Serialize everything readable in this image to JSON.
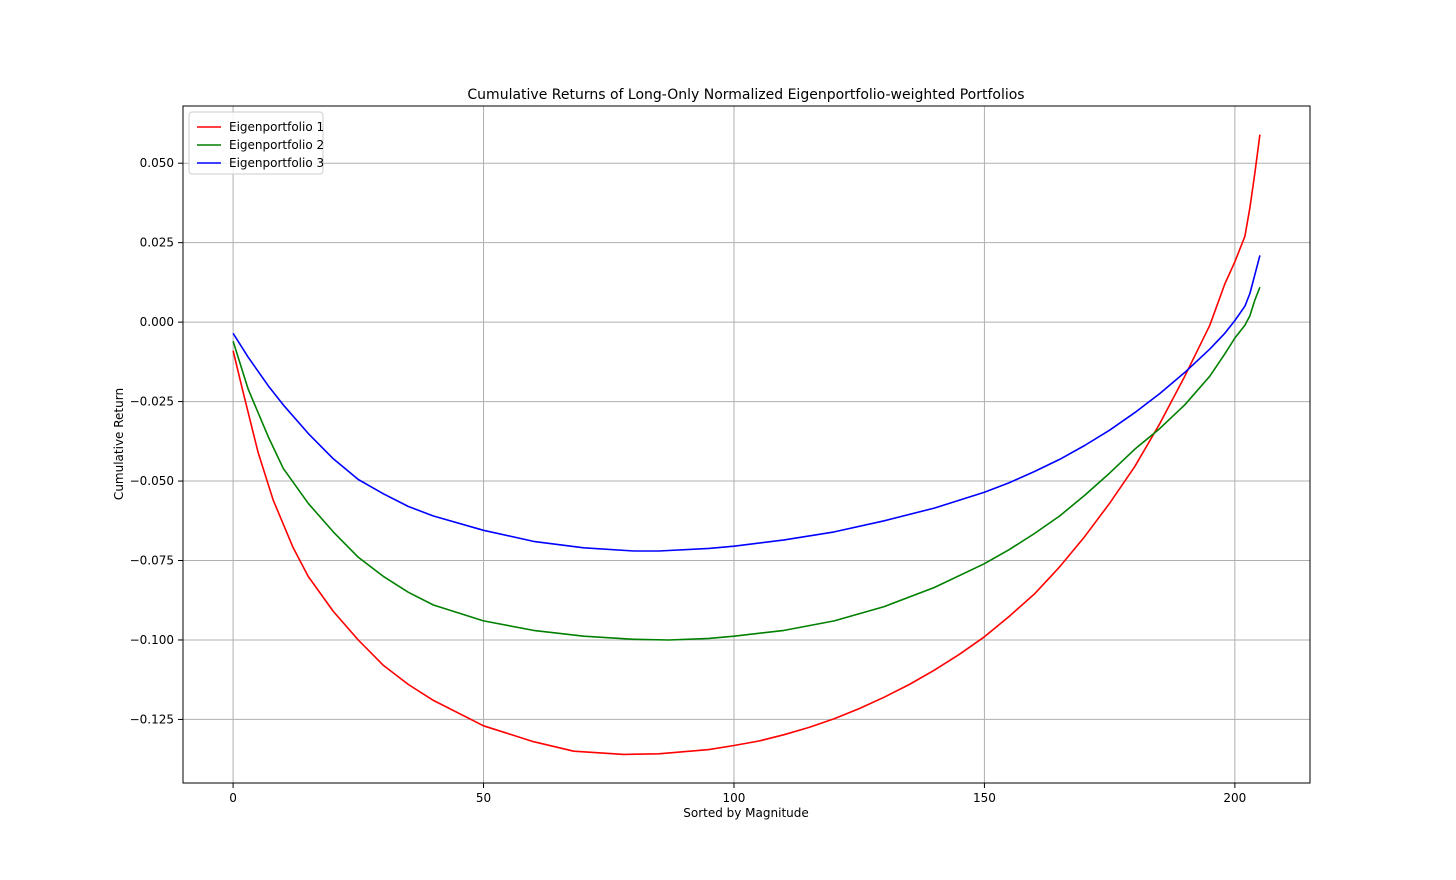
{
  "chart_data": {
    "type": "line",
    "title": "Cumulative Returns of Long-Only Normalized Eigenportfolio-weighted Portfolios",
    "xlabel": "Sorted by Magnitude",
    "ylabel": "Cumulative Return",
    "xlim": [
      -10,
      215
    ],
    "ylim": [
      -0.145,
      0.068
    ],
    "x_ticks": [
      0,
      50,
      100,
      150,
      200
    ],
    "x_tick_labels": [
      "0",
      "50",
      "100",
      "150",
      "200"
    ],
    "y_ticks": [
      0.05,
      0.025,
      0.0,
      -0.025,
      -0.05,
      -0.075,
      -0.1,
      -0.125
    ],
    "y_tick_labels": [
      "0.050",
      "0.025",
      "0.000",
      "−0.025",
      "−0.050",
      "−0.075",
      "−0.100",
      "−0.125"
    ],
    "grid": true,
    "legend_position": "top-left",
    "series": [
      {
        "name": "Eigenportfolio 1",
        "color": "#ff0000",
        "x": [
          0,
          2,
          5,
          8,
          12,
          15,
          20,
          25,
          30,
          35,
          40,
          50,
          60,
          68,
          78,
          85,
          95,
          100,
          105,
          110,
          115,
          120,
          125,
          130,
          135,
          140,
          145,
          150,
          155,
          160,
          165,
          170,
          175,
          180,
          185,
          190,
          195,
          198,
          200,
          202,
          203,
          204,
          205
        ],
        "y": [
          -0.009,
          -0.022,
          -0.041,
          -0.056,
          -0.071,
          -0.08,
          -0.091,
          -0.1,
          -0.108,
          -0.114,
          -0.119,
          -0.127,
          -0.132,
          -0.135,
          -0.136,
          -0.1358,
          -0.1345,
          -0.1332,
          -0.1318,
          -0.1298,
          -0.1275,
          -0.1248,
          -0.1216,
          -0.118,
          -0.114,
          -0.1095,
          -0.1045,
          -0.099,
          -0.0925,
          -0.0855,
          -0.077,
          -0.0675,
          -0.057,
          -0.0455,
          -0.032,
          -0.017,
          -0.001,
          0.012,
          0.019,
          0.027,
          0.036,
          0.047,
          0.059
        ]
      },
      {
        "name": "Eigenportfolio 2",
        "color": "#008000",
        "x": [
          0,
          3,
          7,
          10,
          15,
          20,
          25,
          30,
          35,
          40,
          50,
          60,
          70,
          80,
          87,
          95,
          100,
          110,
          120,
          130,
          140,
          150,
          155,
          160,
          165,
          170,
          175,
          180,
          185,
          190,
          195,
          198,
          200,
          202,
          203,
          204,
          205
        ],
        "y": [
          -0.006,
          -0.021,
          -0.036,
          -0.046,
          -0.057,
          -0.066,
          -0.074,
          -0.08,
          -0.085,
          -0.089,
          -0.094,
          -0.097,
          -0.0988,
          -0.0998,
          -0.1,
          -0.0995,
          -0.0988,
          -0.097,
          -0.094,
          -0.0895,
          -0.0835,
          -0.076,
          -0.0715,
          -0.0665,
          -0.061,
          -0.0545,
          -0.0475,
          -0.04,
          -0.0335,
          -0.026,
          -0.017,
          -0.01,
          -0.005,
          -0.001,
          0.002,
          0.007,
          0.011
        ]
      },
      {
        "name": "Eigenportfolio 3",
        "color": "#0000ff",
        "x": [
          0,
          3,
          7,
          10,
          15,
          20,
          25,
          30,
          35,
          40,
          50,
          60,
          70,
          80,
          85,
          95,
          100,
          110,
          120,
          130,
          140,
          150,
          155,
          160,
          165,
          170,
          175,
          180,
          185,
          190,
          195,
          198,
          200,
          202,
          203,
          204,
          205
        ],
        "y": [
          -0.0035,
          -0.011,
          -0.02,
          -0.026,
          -0.035,
          -0.043,
          -0.0495,
          -0.054,
          -0.058,
          -0.061,
          -0.0655,
          -0.069,
          -0.071,
          -0.072,
          -0.072,
          -0.0712,
          -0.0705,
          -0.0685,
          -0.066,
          -0.0625,
          -0.0585,
          -0.0535,
          -0.0505,
          -0.047,
          -0.0432,
          -0.0388,
          -0.034,
          -0.0285,
          -0.0225,
          -0.0158,
          -0.0085,
          -0.0035,
          0.0005,
          0.005,
          0.009,
          0.015,
          0.021
        ]
      }
    ]
  }
}
